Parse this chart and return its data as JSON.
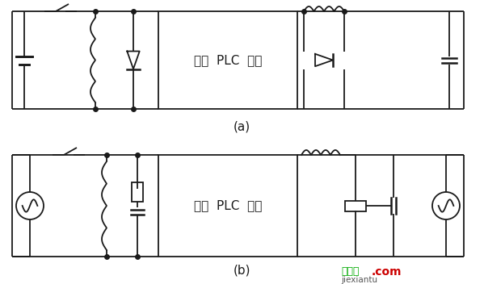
{
  "bg_color": "#ffffff",
  "line_color": "#1a1a1a",
  "line_width": 1.3,
  "dot_size": 4,
  "label_a": "(a)",
  "label_b": "(b)",
  "plc_text": "输入  PLC  输出",
  "watermark_green": "接线图",
  "watermark_com": ".com",
  "watermark_url": "jiexiantu",
  "figsize": [
    5.99,
    3.52
  ],
  "dpi": 100
}
